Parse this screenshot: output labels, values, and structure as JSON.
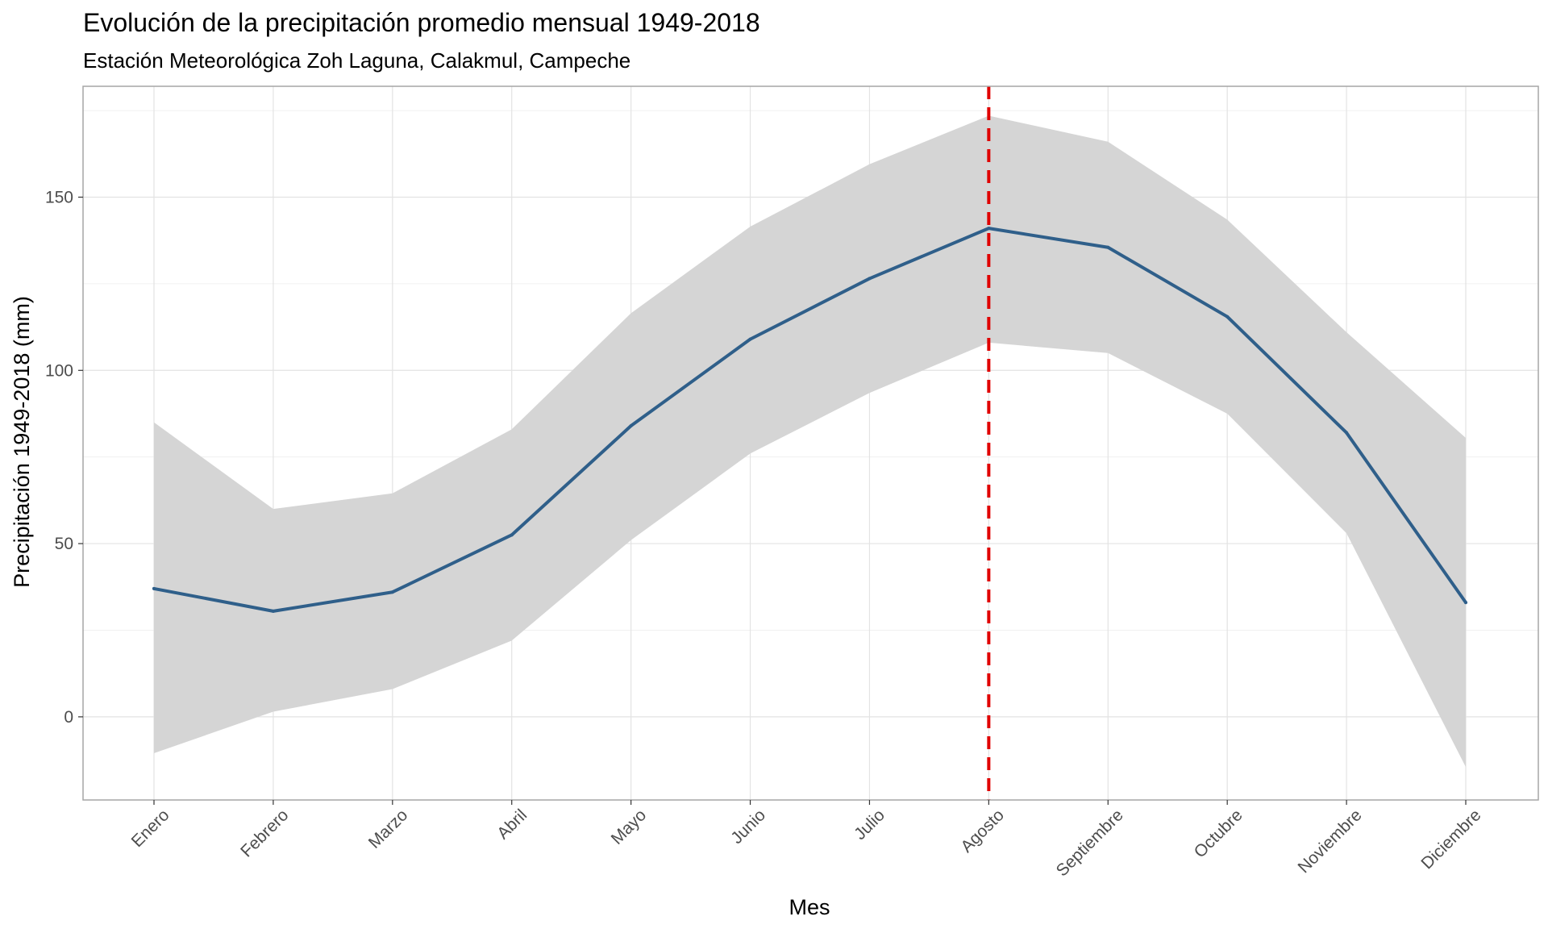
{
  "chart_data": {
    "type": "line",
    "title": "Evolución de la precipitación promedio mensual 1949-2018",
    "subtitle": "Estación Meteorológica Zoh Laguna, Calakmul, Campeche",
    "xlabel": "Mes",
    "ylabel": "Precipitación 1949-2018 (mm)",
    "categories": [
      "Enero",
      "Febrero",
      "Marzo",
      "Abril",
      "Mayo",
      "Junio",
      "Julio",
      "Agosto",
      "Septiembre",
      "Octubre",
      "Noviembre",
      "Diciembre"
    ],
    "series": [
      {
        "values": [
          37,
          30.5,
          36,
          52.5,
          84,
          109,
          126.5,
          141,
          135.5,
          115.5,
          82,
          33
        ],
        "color": "#2f5f8a"
      }
    ],
    "band": {
      "lower": [
        -10.5,
        1.5,
        8,
        22,
        51,
        76,
        93.5,
        108,
        105,
        87.5,
        53,
        -14.5
      ],
      "upper": [
        85,
        60,
        64.5,
        83,
        116.5,
        141.5,
        159.5,
        173.5,
        166,
        143.5,
        111,
        80.5
      ],
      "color": "#d5d5d5"
    },
    "vline": {
      "category": "Agosto",
      "color": "#e00000",
      "style": "dashed"
    },
    "yticks": [
      0,
      50,
      100,
      150
    ],
    "ylim": [
      -24,
      182
    ],
    "grid": true,
    "legend": "none"
  }
}
